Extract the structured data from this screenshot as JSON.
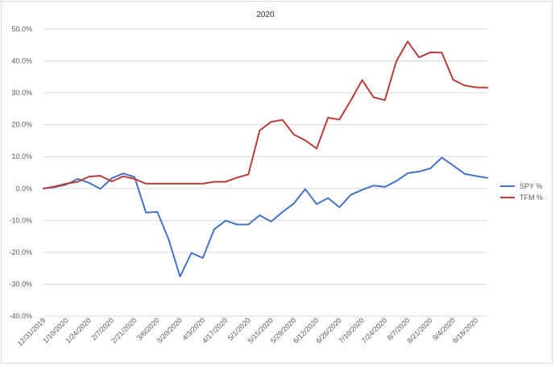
{
  "chart_data": {
    "type": "line",
    "title": "2020",
    "xlabel": "",
    "ylabel": "",
    "grid": true,
    "legend_position": "right",
    "ylim": [
      -40,
      50
    ],
    "y_tick_step": 10,
    "y_tick_labels": [
      "-40.0%",
      "-30.0%",
      "-20.0%",
      "-10.0%",
      "0.0%",
      "10.0%",
      "20.0%",
      "30.0%",
      "40.0%",
      "50.0%"
    ],
    "x": [
      "12/31/2019",
      "1/3/2020",
      "1/10/2020",
      "1/17/2020",
      "1/24/2020",
      "1/31/2020",
      "2/7/2020",
      "2/14/2020",
      "2/21/2020",
      "2/28/2020",
      "3/6/2020",
      "3/13/2020",
      "3/20/2020",
      "3/27/2020",
      "4/3/2020",
      "4/10/2020",
      "4/17/2020",
      "4/24/2020",
      "5/1/2020",
      "5/8/2020",
      "5/15/2020",
      "5/22/2020",
      "5/29/2020",
      "6/5/2020",
      "6/12/2020",
      "6/19/2020",
      "6/26/2020",
      "7/3/2020",
      "7/10/2020",
      "7/17/2020",
      "7/24/2020",
      "7/31/2020",
      "8/7/2020",
      "8/14/2020",
      "8/21/2020",
      "8/28/2020",
      "9/4/2020",
      "9/11/2020",
      "9/18/2020",
      "9/25/2020"
    ],
    "x_tick_labels": [
      "12/31/2019",
      "1/10/2020",
      "1/24/2020",
      "2/7/2020",
      "2/21/2020",
      "3/6/2020",
      "3/20/2020",
      "4/3/2020",
      "4/17/2020",
      "5/1/2020",
      "5/15/2020",
      "5/29/2020",
      "6/12/2020",
      "6/26/2020",
      "7/10/2020",
      "7/24/2020",
      "8/7/2020",
      "8/21/2020",
      "9/4/2020",
      "9/18/2020"
    ],
    "series": [
      {
        "name": "SPY %",
        "color": "#4472c4",
        "values": [
          0.0,
          0.4,
          1.2,
          3.0,
          1.8,
          -0.1,
          3.2,
          4.7,
          3.6,
          -7.6,
          -7.3,
          -16.0,
          -27.6,
          -20.2,
          -21.8,
          -12.8,
          -10.1,
          -11.3,
          -11.3,
          -8.4,
          -10.4,
          -7.4,
          -4.7,
          -0.2,
          -4.9,
          -3.0,
          -5.9,
          -2.0,
          -0.4,
          0.9,
          0.5,
          2.3,
          4.8,
          5.3,
          6.3,
          9.7,
          7.2,
          4.6,
          3.9,
          3.3
        ]
      },
      {
        "name": "TFM %",
        "color": "#b73d3a",
        "values": [
          0.0,
          0.6,
          1.5,
          2.1,
          3.7,
          4.0,
          2.2,
          3.8,
          3.0,
          1.5,
          1.5,
          1.5,
          1.5,
          1.5,
          1.5,
          2.1,
          2.1,
          3.4,
          4.4,
          18.2,
          20.9,
          21.5,
          16.9,
          15.1,
          12.5,
          22.2,
          21.6,
          27.6,
          34.0,
          28.6,
          27.7,
          39.9,
          46.1,
          41.1,
          42.7,
          42.6,
          34.1,
          32.3,
          31.7,
          31.6
        ]
      }
    ]
  }
}
